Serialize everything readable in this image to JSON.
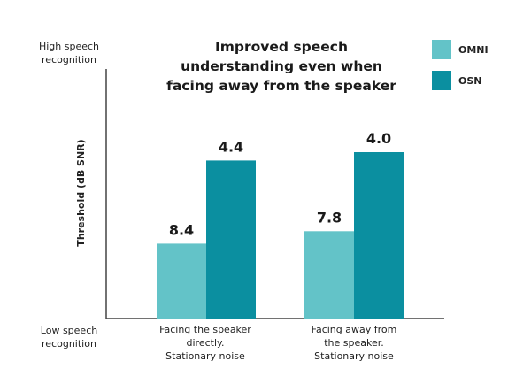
{
  "chart_data": {
    "type": "bar",
    "title": [
      "Improved speech",
      "understanding even when",
      "facing away from the speaker"
    ],
    "ylabel": "Threshold (dB SNR)",
    "y_top_label": [
      "High speech",
      "recognition"
    ],
    "y_bottom_label": [
      "Low speech",
      "recognition"
    ],
    "categories": [
      [
        "Facing the speaker",
        "directly.",
        "Stationary noise"
      ],
      [
        "Facing away from",
        "the speaker.",
        "Stationary noise"
      ]
    ],
    "series": [
      {
        "name": "OMNI",
        "color": "#63c3c8",
        "values": [
          8.4,
          7.8
        ]
      },
      {
        "name": "OSN",
        "color": "#0b8fa0",
        "values": [
          4.4,
          4.0
        ]
      }
    ],
    "ylim": [
      12,
      0
    ],
    "y_inverted": true,
    "grid": false,
    "legend_position": "top-right"
  }
}
